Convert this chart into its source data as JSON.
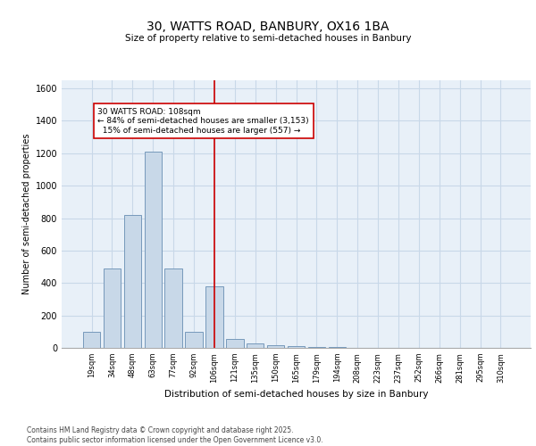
{
  "title_line1": "30, WATTS ROAD, BANBURY, OX16 1BA",
  "title_line2": "Size of property relative to semi-detached houses in Banbury",
  "xlabel": "Distribution of semi-detached houses by size in Banbury",
  "ylabel": "Number of semi-detached properties",
  "categories": [
    "19sqm",
    "34sqm",
    "48sqm",
    "63sqm",
    "77sqm",
    "92sqm",
    "106sqm",
    "121sqm",
    "135sqm",
    "150sqm",
    "165sqm",
    "179sqm",
    "194sqm",
    "208sqm",
    "223sqm",
    "237sqm",
    "252sqm",
    "266sqm",
    "281sqm",
    "295sqm",
    "310sqm"
  ],
  "values": [
    100,
    490,
    820,
    1210,
    490,
    100,
    380,
    55,
    30,
    15,
    10,
    5,
    5,
    0,
    0,
    0,
    0,
    0,
    0,
    0,
    0
  ],
  "bar_color": "#c8d8e8",
  "bar_edge_color": "#7799bb",
  "property_size": "108sqm",
  "percent_smaller": 84,
  "count_smaller": 3153,
  "percent_larger": 15,
  "count_larger": 557,
  "vline_color": "#cc0000",
  "annotation_box_edge": "#cc0000",
  "ylim": [
    0,
    1650
  ],
  "yticks": [
    0,
    200,
    400,
    600,
    800,
    1000,
    1200,
    1400,
    1600
  ],
  "grid_color": "#c8d8e8",
  "background_color": "#e8f0f8",
  "footer_line1": "Contains HM Land Registry data © Crown copyright and database right 2025.",
  "footer_line2": "Contains public sector information licensed under the Open Government Licence v3.0."
}
